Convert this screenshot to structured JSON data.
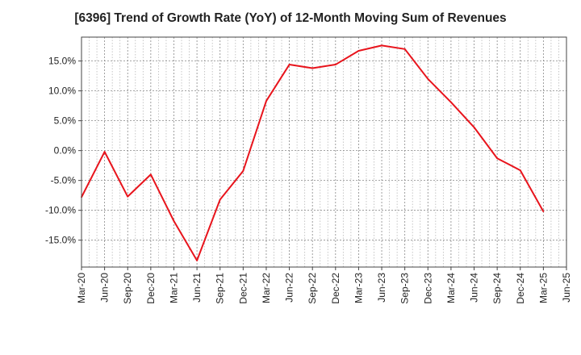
{
  "chart_data": {
    "type": "line",
    "title": "[6396]  Trend of Growth Rate (YoY) of 12-Month Moving Sum of Revenues",
    "xlabel": "",
    "ylabel": "",
    "x_ticks": [
      "Mar-20",
      "Jun-20",
      "Sep-20",
      "Dec-20",
      "Mar-21",
      "Jun-21",
      "Sep-21",
      "Dec-21",
      "Mar-22",
      "Jun-22",
      "Sep-22",
      "Dec-22",
      "Mar-23",
      "Jun-23",
      "Sep-23",
      "Dec-23",
      "Mar-24",
      "Jun-24",
      "Sep-24",
      "Dec-24",
      "Mar-25",
      "Jun-25"
    ],
    "y_ticks": [
      15,
      10,
      5,
      0,
      -5,
      -10,
      -15
    ],
    "y_tick_labels": [
      "15.0%",
      "10.0%",
      "5.0%",
      "0.0%",
      "-5.0%",
      "-10.0%",
      "-15.0%"
    ],
    "ylim": [
      -19.5,
      19.0
    ],
    "grid": true,
    "series": [
      {
        "color": "#e8141c",
        "points": [
          {
            "x": "Mar-20",
            "y": -7.8
          },
          {
            "x": "Jun-20",
            "y": -0.2
          },
          {
            "x": "Sep-20",
            "y": -7.7
          },
          {
            "x": "Dec-20",
            "y": -4.0
          },
          {
            "x": "Mar-21",
            "y": -11.8
          },
          {
            "x": "Jun-21",
            "y": -18.4
          },
          {
            "x": "Sep-21",
            "y": -8.2
          },
          {
            "x": "Dec-21",
            "y": -3.4
          },
          {
            "x": "Mar-22",
            "y": 8.3
          },
          {
            "x": "Jun-22",
            "y": 14.4
          },
          {
            "x": "Sep-22",
            "y": 13.8
          },
          {
            "x": "Dec-22",
            "y": 14.4
          },
          {
            "x": "Mar-23",
            "y": 16.7
          },
          {
            "x": "Jun-23",
            "y": 17.6
          },
          {
            "x": "Sep-23",
            "y": 17.0
          },
          {
            "x": "Dec-23",
            "y": 12.0
          },
          {
            "x": "Mar-24",
            "y": 8.1
          },
          {
            "x": "Jun-24",
            "y": 3.9
          },
          {
            "x": "Sep-24",
            "y": -1.3
          },
          {
            "x": "Dec-24",
            "y": -3.3
          },
          {
            "x": "Mar-25",
            "y": -10.2
          }
        ]
      }
    ]
  },
  "colors": {
    "line": "#e8141c",
    "major_grid": "#888888",
    "minor_grid": "#b8b8b8",
    "axis": "#444444"
  }
}
